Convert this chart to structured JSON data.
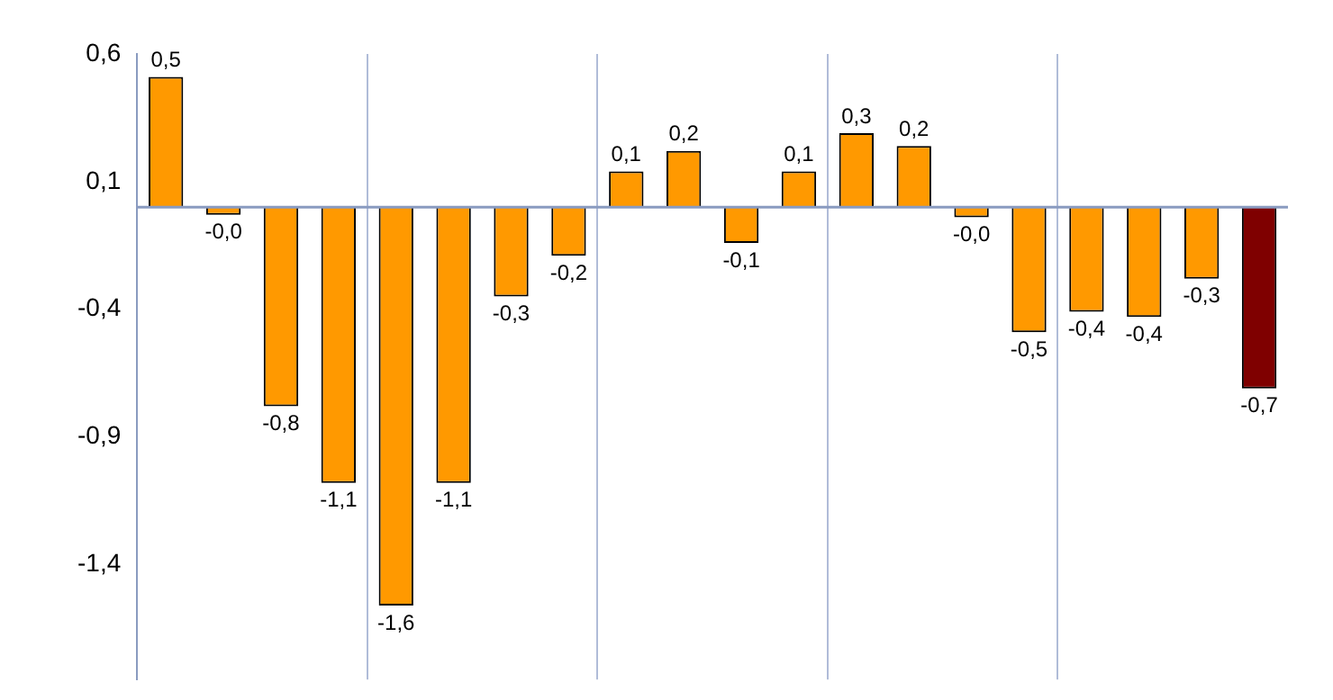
{
  "chart_data": {
    "type": "bar",
    "categories": [
      null,
      null,
      null,
      null,
      null,
      null,
      null,
      null,
      null,
      null,
      null,
      null,
      null,
      null,
      null,
      null,
      null,
      null,
      null,
      null
    ],
    "values": [
      0.51,
      -0.03,
      -0.78,
      -1.08,
      -1.56,
      -1.08,
      -0.35,
      -0.19,
      0.14,
      0.22,
      -0.14,
      0.14,
      0.29,
      0.24,
      -0.04,
      -0.49,
      -0.41,
      -0.43,
      -0.28,
      -0.71
    ],
    "value_labels": [
      "0,5",
      "-0,0",
      "-0,8",
      "-1,1",
      "-1,6",
      "-1,1",
      "-0,3",
      "-0,2",
      "0,1",
      "0,2",
      "-0,1",
      "0,1",
      "0,3",
      "0,2",
      "-0,0",
      "-0,5",
      "-0,4",
      "-0,4",
      "-0,3",
      "-0,7"
    ],
    "colors": [
      "#ff9900",
      "#ff9900",
      "#ff9900",
      "#ff9900",
      "#ff9900",
      "#ff9900",
      "#ff9900",
      "#ff9900",
      "#ff9900",
      "#ff9900",
      "#ff9900",
      "#ff9900",
      "#ff9900",
      "#ff9900",
      "#ff9900",
      "#ff9900",
      "#ff9900",
      "#ff9900",
      "#ff9900",
      "#7f0000"
    ],
    "ylim": [
      -1.85,
      0.6
    ],
    "yticks": [
      {
        "value": 0.6,
        "label": "0,6"
      },
      {
        "value": 0.1,
        "label": "0,1"
      },
      {
        "value": -0.4,
        "label": "-0,4"
      },
      {
        "value": -0.9,
        "label": "-0,9"
      },
      {
        "value": -1.4,
        "label": "-1,4"
      }
    ],
    "ref_lines": [
      {
        "axis": "y",
        "value": 0,
        "color": "#8a9bc0"
      }
    ],
    "grid": "x",
    "legend": false,
    "tick_labels": "y"
  }
}
